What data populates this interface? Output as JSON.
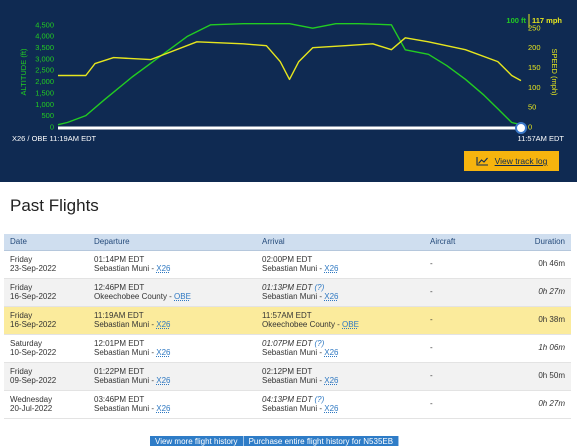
{
  "chart_data": {
    "type": "line",
    "x_labels": {
      "left": "X26 / OBE 11:19AM EDT",
      "right": "11:57AM EDT"
    },
    "left_axis": {
      "label": "ALTITUDE (ft)",
      "ticks": [
        "4,500",
        "4,000",
        "3,500",
        "3,000",
        "2,500",
        "2,000",
        "1,500",
        "1,000",
        "500",
        "0"
      ],
      "ylim": [
        0,
        4800
      ],
      "color": "#22cc22"
    },
    "right_axis": {
      "label": "SPEED (mph)",
      "ticks": [
        "250",
        "200",
        "150",
        "100",
        "50",
        "0"
      ],
      "ylim": [
        0,
        275
      ],
      "color": "#e6e61e"
    },
    "current_readout": {
      "altitude": "100 ft",
      "speed": "117 mph"
    },
    "series": [
      {
        "type": "altitude",
        "color": "#22cc22",
        "t": [
          0,
          0.02,
          0.06,
          0.1,
          0.16,
          0.22,
          0.28,
          0.33,
          0.4,
          0.5,
          0.55,
          0.6,
          0.65,
          0.72,
          0.75,
          0.8,
          0.84,
          0.88,
          0.92,
          0.95,
          0.98,
          1.0
        ],
        "values": [
          100,
          200,
          500,
          1200,
          2200,
          3100,
          4000,
          4500,
          4550,
          4550,
          4350,
          4550,
          4550,
          4500,
          3400,
          3200,
          2700,
          2100,
          1400,
          800,
          200,
          100
        ]
      },
      {
        "type": "speed",
        "color": "#e6e61e",
        "t": [
          0,
          0.06,
          0.08,
          0.12,
          0.2,
          0.3,
          0.4,
          0.45,
          0.48,
          0.5,
          0.52,
          0.55,
          0.62,
          0.68,
          0.72,
          0.75,
          0.8,
          0.88,
          0.95,
          0.98,
          1.0
        ],
        "values": [
          130,
          130,
          160,
          175,
          170,
          215,
          210,
          205,
          165,
          120,
          165,
          200,
          205,
          210,
          195,
          225,
          215,
          195,
          165,
          130,
          117
        ]
      }
    ],
    "grid": false
  },
  "track_log_button": {
    "label": "View track log"
  },
  "section_title": "Past Flights",
  "table": {
    "headers": {
      "date": "Date",
      "departure": "Departure",
      "arrival": "Arrival",
      "aircraft": "Aircraft",
      "duration": "Duration"
    },
    "rows": [
      {
        "day": "Friday",
        "date": "23-Sep-2022",
        "dep_time": "01:14PM EDT",
        "dep_airport": "Sebastian Muni",
        "dep_code": "X26",
        "arr_time": "02:00PM EDT",
        "arr_est": false,
        "arr_q": "",
        "arr_airport": "Sebastian Muni",
        "arr_code": "X26",
        "aircraft": "-",
        "duration": "0h 46m",
        "dur_est": false,
        "style": "normal"
      },
      {
        "day": "Friday",
        "date": "16-Sep-2022",
        "dep_time": "12:46PM EDT",
        "dep_airport": "Okeechobee County",
        "dep_code": "OBE",
        "arr_time": "01:13PM EDT",
        "arr_est": true,
        "arr_q": "(?)",
        "arr_airport": "Sebastian Muni",
        "arr_code": "X26",
        "aircraft": "-",
        "duration": "0h 27m",
        "dur_est": true,
        "style": "alt"
      },
      {
        "day": "Friday",
        "date": "16-Sep-2022",
        "dep_time": "11:19AM EDT",
        "dep_airport": "Sebastian Muni",
        "dep_code": "X26",
        "arr_time": "11:57AM EDT",
        "arr_est": false,
        "arr_q": "",
        "arr_airport": "Okeechobee County",
        "arr_code": "OBE",
        "aircraft": "-",
        "duration": "0h 38m",
        "dur_est": false,
        "style": "hl"
      },
      {
        "day": "Saturday",
        "date": "10-Sep-2022",
        "dep_time": "12:01PM EDT",
        "dep_airport": "Sebastian Muni",
        "dep_code": "X26",
        "arr_time": "01:07PM EDT",
        "arr_est": true,
        "arr_q": "(?)",
        "arr_airport": "Sebastian Muni",
        "arr_code": "X26",
        "aircraft": "-",
        "duration": "1h 06m",
        "dur_est": true,
        "style": "normal"
      },
      {
        "day": "Friday",
        "date": "09-Sep-2022",
        "dep_time": "01:22PM EDT",
        "dep_airport": "Sebastian Muni",
        "dep_code": "X26",
        "arr_time": "02:12PM EDT",
        "arr_est": false,
        "arr_q": "",
        "arr_airport": "Sebastian Muni",
        "arr_code": "X26",
        "aircraft": "-",
        "duration": "0h 50m",
        "dur_est": false,
        "style": "alt"
      },
      {
        "day": "Wednesday",
        "date": "20-Jul-2022",
        "dep_time": "03:46PM EDT",
        "dep_airport": "Sebastian Muni",
        "dep_code": "X26",
        "arr_time": "04:13PM EDT",
        "arr_est": true,
        "arr_q": "(?)",
        "arr_airport": "Sebastian Muni",
        "arr_code": "X26",
        "aircraft": "-",
        "duration": "0h 27m",
        "dur_est": true,
        "style": "normal"
      }
    ]
  },
  "bottom_buttons": {
    "more_history": "View more flight history",
    "purchase": "Purchase entire flight history for N535EB"
  }
}
